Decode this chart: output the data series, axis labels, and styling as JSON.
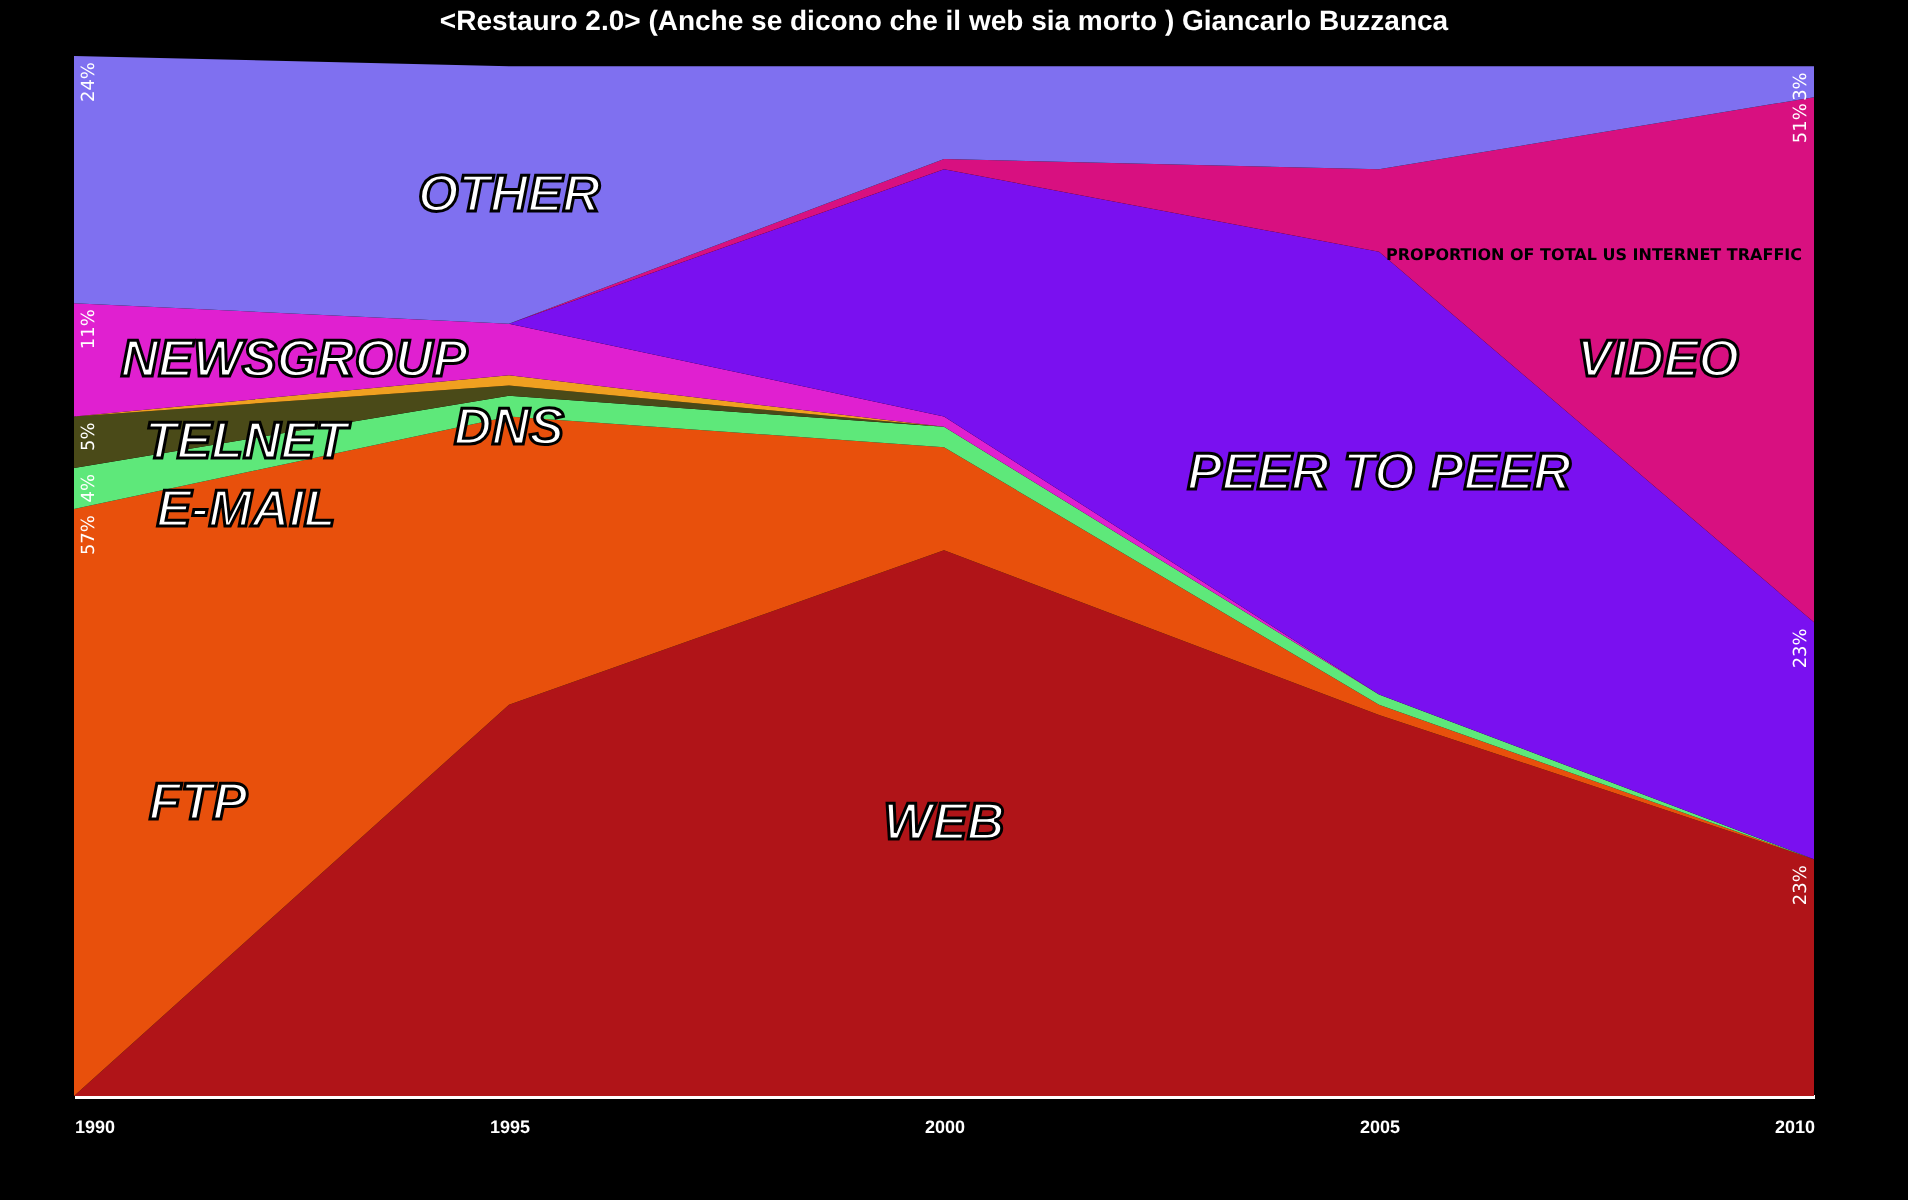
{
  "chart_data": {
    "type": "area",
    "stacked": true,
    "title": "<Restauro 2.0>   (Anche se dicono che il web sia morto )   Giancarlo Buzzanca",
    "x": [
      1990,
      1995,
      2000,
      2005,
      2010
    ],
    "xlim": [
      1990,
      2010
    ],
    "xticks": [
      1990,
      1995,
      2000,
      2005,
      2010
    ],
    "tick_labels": "x",
    "grid": false,
    "legend": false,
    "series": [
      {
        "name": "WEB",
        "color": "#b01418",
        "values": [
          0,
          38,
          53,
          37,
          23
        ],
        "value_labels": [
          null,
          null,
          null,
          null,
          "23%"
        ]
      },
      {
        "name": "FTP",
        "color": "#e8500c",
        "values": [
          57,
          28,
          10,
          1,
          0
        ],
        "value_labels": [
          "57%",
          null,
          null,
          null,
          null
        ]
      },
      {
        "name": "E-MAIL",
        "color": "#5ee87a",
        "values": [
          4,
          2,
          2,
          1,
          0
        ],
        "value_labels": [
          "4%",
          null,
          null,
          null,
          null
        ]
      },
      {
        "name": "TELNET",
        "color": "#4a4a18",
        "values": [
          5,
          1,
          0,
          0,
          0
        ],
        "value_labels": [
          "5%",
          null,
          null,
          null,
          null
        ]
      },
      {
        "name": "DNS",
        "color": "#f0a020",
        "values": [
          0,
          1,
          0,
          0,
          0
        ]
      },
      {
        "name": "NEWSGROUP",
        "color": "#e020d0",
        "values": [
          11,
          5,
          1,
          0,
          0
        ],
        "value_labels": [
          "11%",
          null,
          null,
          null,
          null
        ]
      },
      {
        "name": "PEER TO PEER",
        "color": "#7a10f0",
        "values": [
          0,
          0,
          24,
          43,
          23
        ],
        "value_labels": [
          null,
          null,
          null,
          null,
          "23%"
        ]
      },
      {
        "name": "VIDEO",
        "color": "#d81080",
        "values": [
          0,
          0,
          1,
          8,
          51
        ],
        "value_labels": [
          null,
          null,
          null,
          null,
          "51%"
        ]
      },
      {
        "name": "OTHER",
        "color": "#7f70f0",
        "values": [
          24,
          25,
          9,
          10,
          3
        ],
        "value_labels": [
          "24%",
          null,
          null,
          null,
          "3%"
        ]
      }
    ],
    "annotations": [
      "PROPORTION OF TOTAL US INTERNET TRAFFIC"
    ]
  }
}
